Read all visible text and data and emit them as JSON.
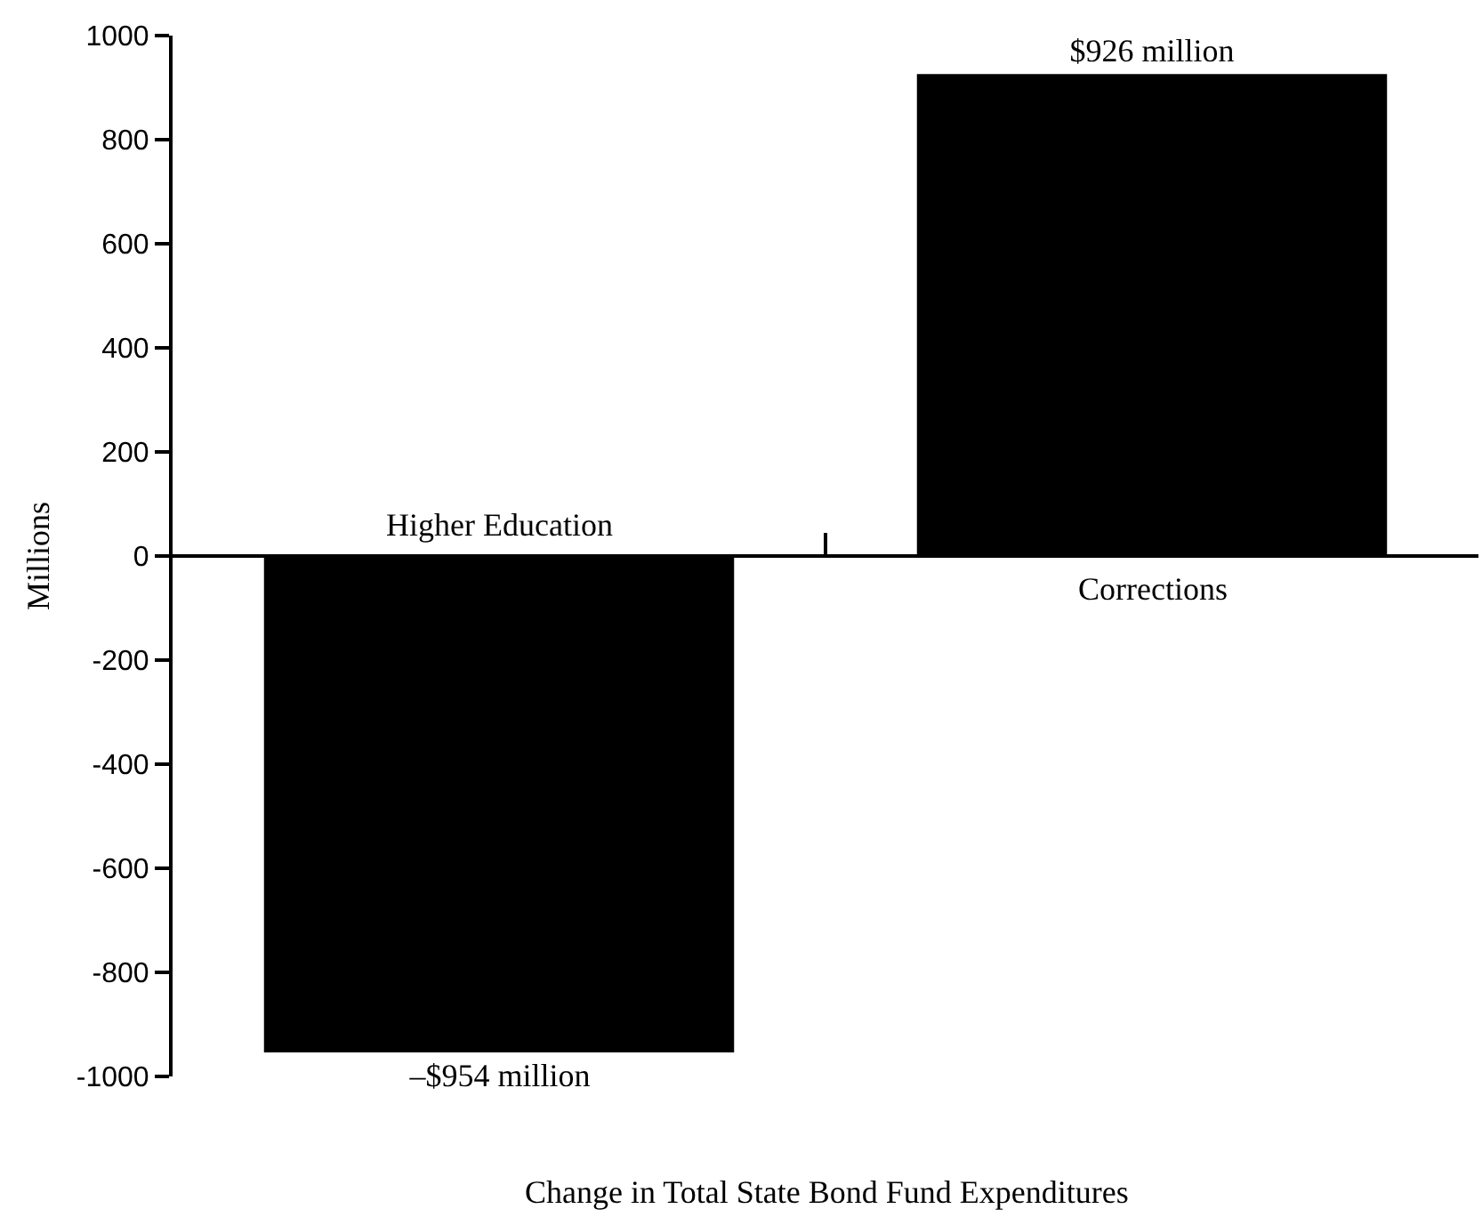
{
  "chart_data": {
    "type": "bar",
    "categories": [
      "Higher Education",
      "Corrections"
    ],
    "values": [
      -954,
      926
    ],
    "color": "#000000",
    "value_labels": [
      "–$954 million",
      "$926 million"
    ],
    "xlabel": "Change in Total State Bond Fund Expenditures",
    "ylabel": "Millions",
    "ylim": [
      -1000,
      1000
    ],
    "yticks": [
      -1000,
      -800,
      -600,
      -400,
      -200,
      0,
      200,
      400,
      600,
      800,
      1000
    ],
    "legend": false
  }
}
